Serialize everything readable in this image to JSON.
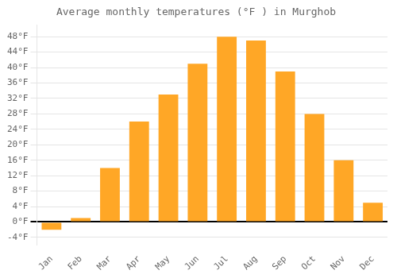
{
  "chart_data": {
    "type": "bar",
    "title": "Average monthly temperatures (°F ) in Murghob",
    "categories": [
      "Jan",
      "Feb",
      "Mar",
      "Apr",
      "May",
      "Jun",
      "Jul",
      "Aug",
      "Sep",
      "Oct",
      "Nov",
      "Dec"
    ],
    "values": [
      -2,
      1,
      14,
      26,
      33,
      41,
      48,
      47,
      39,
      28,
      16,
      5
    ],
    "color": "#FFA726",
    "ylim": [
      -6,
      51
    ],
    "yticks": [
      {
        "value": -4,
        "label": "-4°F"
      },
      {
        "value": 0,
        "label": "0°F"
      },
      {
        "value": 4,
        "label": "4°F"
      },
      {
        "value": 8,
        "label": "8°F"
      },
      {
        "value": 12,
        "label": "12°F"
      },
      {
        "value": 16,
        "label": "16°F"
      },
      {
        "value": 20,
        "label": "20°F"
      },
      {
        "value": 24,
        "label": "24°F"
      },
      {
        "value": 28,
        "label": "28°F"
      },
      {
        "value": 32,
        "label": "32°F"
      },
      {
        "value": 36,
        "label": "36°F"
      },
      {
        "value": 40,
        "label": "40°F"
      },
      {
        "value": 44,
        "label": "44°F"
      },
      {
        "value": 48,
        "label": "48°F"
      }
    ],
    "grid": true
  }
}
